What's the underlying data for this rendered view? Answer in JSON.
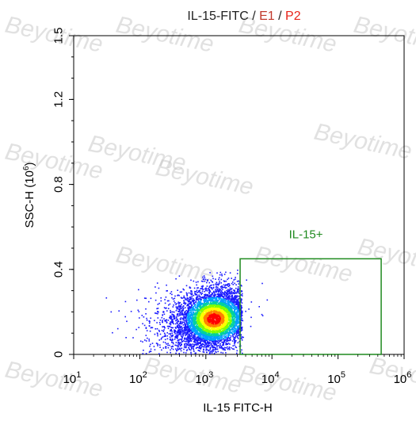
{
  "title": {
    "parts": [
      {
        "text": "IL-15-FITC",
        "color": "#222222"
      },
      {
        "text": " / ",
        "color": "#222222"
      },
      {
        "text": "E1",
        "color": "#c0392b"
      },
      {
        "text": " / ",
        "color": "#222222"
      },
      {
        "text": "P2",
        "color": "#e8241a"
      }
    ]
  },
  "watermark": {
    "text": "Beyotime",
    "color": "#c8c8c8"
  },
  "chart_data": {
    "type": "scatter",
    "plot_style": "density dot plot (pseudocolor)",
    "x_axis": {
      "label": "IL-15 FITC-H",
      "scale": "log",
      "range": [
        10,
        1000000
      ],
      "ticks": [
        {
          "base": "10",
          "exp": "1",
          "value": 10
        },
        {
          "base": "10",
          "exp": "2",
          "value": 100
        },
        {
          "base": "10",
          "exp": "3",
          "value": 1000
        },
        {
          "base": "10",
          "exp": "4",
          "value": 10000
        },
        {
          "base": "10",
          "exp": "5",
          "value": 100000
        },
        {
          "base": "10",
          "exp": "6",
          "value": 1000000
        }
      ]
    },
    "y_axis": {
      "label_main": "SSC-H (10",
      "label_exp": "6",
      "label_end": ")",
      "scale": "linear",
      "range": [
        0,
        1.5
      ],
      "ticks": [
        "0",
        "0.4",
        "0.8",
        "1.2",
        "1.5"
      ]
    },
    "gate": {
      "label": "IL-15+",
      "color": "#1f8a1f",
      "x_range": [
        3300,
        450000
      ],
      "y_range": [
        0,
        0.45
      ]
    },
    "population": {
      "center": {
        "x": 1300,
        "y": 0.17
      },
      "density_colors": [
        "#1a1aff",
        "#00a0ff",
        "#00d0a0",
        "#80ff00",
        "#ffff00",
        "#ff8000",
        "#ff0000"
      ]
    },
    "grid": false,
    "legend": "none"
  }
}
